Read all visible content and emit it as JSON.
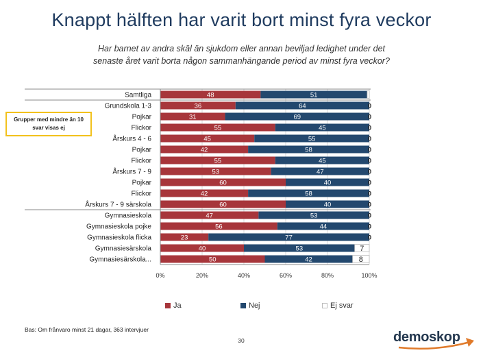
{
  "title": "Knappt hälften har varit bort minst fyra veckor",
  "subtitle_line1": "Har barnet av andra skäl än sjukdom eller annan beviljad ledighet under det",
  "subtitle_line2": "senaste året varit borta någon sammanhängande period av minst fyra veckor?",
  "note": "Grupper med mindre än 10 svar visas ej",
  "footer_note": "Bas: Om frånvaro minst 21 dagar, 363 intervjuer",
  "page_number": "30",
  "logo_text": "demoskop",
  "colors": {
    "ja": "#a7363b",
    "nej": "#23486e",
    "ej_svar": "#ffffff",
    "title": "#1f3b5f",
    "accent": "#e07a2a",
    "note_border": "#f2c11c"
  },
  "chart_data": {
    "type": "bar",
    "orientation": "horizontal",
    "stacked": true,
    "categories": [
      "Samtliga",
      "Grundskola 1-3",
      "Pojkar",
      "Flickor",
      "Årskurs 4 - 6",
      "Pojkar",
      "Flickor",
      "Årskurs 7 - 9",
      "Pojkar",
      "Flickor",
      "Årskurs 7 - 9 särskola",
      "Gymnasieskola",
      "Gymnasieskola pojke",
      "Gymnasieskola flicka",
      "Gymnasiesärskola",
      "Gymnasiesärskola..."
    ],
    "series": [
      {
        "name": "Ja",
        "color": "#a7363b",
        "values": [
          48,
          36,
          31,
          55,
          45,
          42,
          55,
          53,
          60,
          42,
          60,
          47,
          56,
          23,
          40,
          50
        ]
      },
      {
        "name": "Nej",
        "color": "#23486e",
        "values": [
          51,
          64,
          69,
          45,
          55,
          58,
          45,
          47,
          40,
          58,
          40,
          53,
          44,
          77,
          53,
          42
        ]
      },
      {
        "name": "Ej svar",
        "color": "#ffffff",
        "values": [
          1,
          0,
          0,
          0,
          0,
          0,
          0,
          0,
          0,
          0,
          0,
          0,
          0,
          0,
          7,
          8
        ]
      }
    ],
    "labels": {
      "Ja": [
        "48",
        "36",
        "31",
        "55",
        "45",
        "42",
        "55",
        "53",
        "60",
        "42",
        "60",
        "47",
        "56",
        "23",
        "40",
        "50"
      ],
      "Nej": [
        "51",
        "64",
        "69",
        "45",
        "55",
        "58",
        "45",
        "47",
        "40",
        "58",
        "40",
        "53",
        "44",
        "77",
        "53",
        "42"
      ],
      "Ej svar": [
        "",
        "0",
        "0",
        "0",
        "0",
        "0",
        "0",
        "0",
        "0",
        "0",
        "0",
        "0",
        "0",
        "0",
        "7",
        "8"
      ]
    },
    "separators_after": [
      "Samtliga",
      "Årskurs 7 - 9 särskola"
    ],
    "xlim": [
      0,
      100
    ],
    "xticks": [
      "0%",
      "20%",
      "40%",
      "60%",
      "80%",
      "100%"
    ],
    "legend": [
      "Ja",
      "Nej",
      "Ej svar"
    ],
    "legend_position": "bottom"
  }
}
